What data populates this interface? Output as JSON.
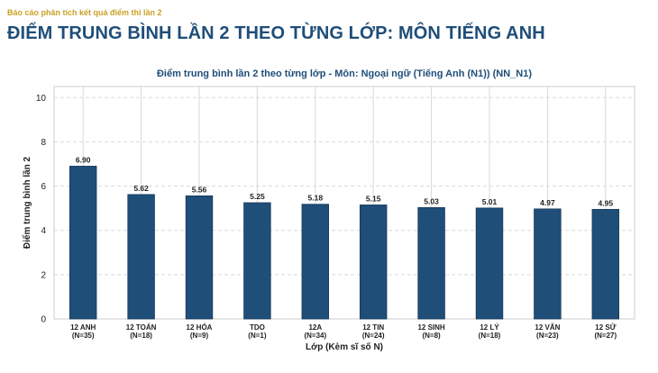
{
  "header": {
    "breadcrumb": "Báo cáo phân tích kết quả điểm thi lần 2",
    "title": "ĐIỂM TRUNG BÌNH LẦN 2 THEO TỪNG LỚP: MÔN TIẾNG ANH"
  },
  "colors": {
    "bar": "#1f4e79",
    "bar_edge": "#16395a",
    "grid": "#d9d9d9",
    "frame": "#cccccc"
  },
  "chart_data": {
    "type": "bar",
    "title": "Điểm trung bình lần 2 theo từng lớp - Môn: Ngoại ngữ (Tiếng Anh (N1)) (NN_N1)",
    "xlabel": "Lớp (Kèm sĩ số N)",
    "ylabel": "Điểm trung bình lần 2",
    "ylim": [
      0,
      10.5
    ],
    "yticks": [
      0,
      2,
      4,
      6,
      8,
      10
    ],
    "grid": true,
    "categories": [
      {
        "name": "12 ANH",
        "n": "(N=35)"
      },
      {
        "name": "12 TOÁN",
        "n": "(N=18)"
      },
      {
        "name": "12 HÓA",
        "n": "(N=9)"
      },
      {
        "name": "TDO",
        "n": "(N=1)"
      },
      {
        "name": "12A",
        "n": "(N=34)"
      },
      {
        "name": "12 TIN",
        "n": "(N=24)"
      },
      {
        "name": "12 SINH",
        "n": "(N=8)"
      },
      {
        "name": "12 LÝ",
        "n": "(N=18)"
      },
      {
        "name": "12 VĂN",
        "n": "(N=23)"
      },
      {
        "name": "12 SỬ",
        "n": "(N=27)"
      }
    ],
    "values": [
      6.9,
      5.62,
      5.56,
      5.25,
      5.18,
      5.15,
      5.03,
      5.01,
      4.97,
      4.95
    ],
    "value_labels": [
      "6.90",
      "5.62",
      "5.56",
      "5.25",
      "5.18",
      "5.15",
      "5.03",
      "5.01",
      "4.97",
      "4.95"
    ]
  }
}
